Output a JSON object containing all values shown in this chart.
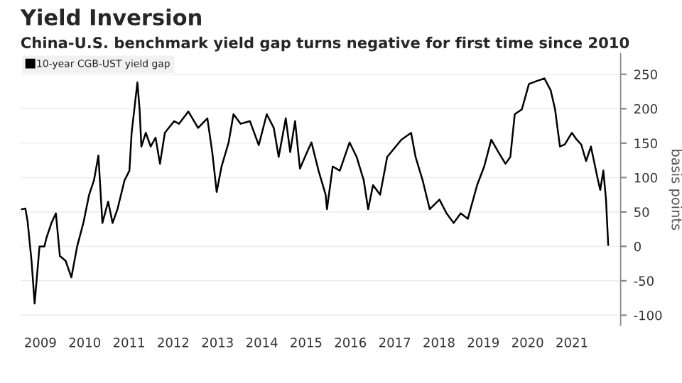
{
  "chart_data": {
    "type": "line",
    "title": "Yield Inversion",
    "subtitle": "China-U.S. benchmark yield gap turns negative for first time since 2010",
    "ylabel": "basis points",
    "series": [
      {
        "name": "10-year CGB-UST yield gap",
        "color": "#000000",
        "x": [
          2009.08,
          2009.16,
          2009.21,
          2009.3,
          2009.37,
          2009.48,
          2009.59,
          2009.64,
          2009.75,
          2009.85,
          2009.94,
          2010.07,
          2010.2,
          2010.33,
          2010.47,
          2010.6,
          2010.71,
          2010.81,
          2010.9,
          2011.03,
          2011.13,
          2011.24,
          2011.4,
          2011.51,
          2011.56,
          2011.69,
          2011.74,
          2011.78,
          2011.88,
          2011.99,
          2012.1,
          2012.2,
          2012.31,
          2012.52,
          2012.63,
          2012.84,
          2013.06,
          2013.27,
          2013.38,
          2013.48,
          2013.59,
          2013.75,
          2013.86,
          2014.02,
          2014.23,
          2014.43,
          2014.61,
          2014.77,
          2014.88,
          2015.04,
          2015.14,
          2015.25,
          2015.36,
          2015.52,
          2015.62,
          2015.78,
          2015.94,
          2015.97,
          2016.1,
          2016.26,
          2016.48,
          2016.64,
          2016.8,
          2016.9,
          2017.01,
          2017.17,
          2017.33,
          2017.65,
          2017.87,
          2017.97,
          2018.13,
          2018.29,
          2018.51,
          2018.67,
          2018.83,
          2018.99,
          2019.15,
          2019.36,
          2019.52,
          2019.68,
          2019.84,
          2020.0,
          2020.11,
          2020.21,
          2020.37,
          2020.53,
          2020.7,
          2020.88,
          2021.02,
          2021.12,
          2021.23,
          2021.34,
          2021.5,
          2021.61,
          2021.71,
          2021.82,
          2021.93,
          2022.09,
          2022.14,
          2022.21,
          2022.27,
          2022.32
        ],
        "values": [
          54,
          55,
          37,
          -21,
          -83,
          0,
          0,
          13,
          34,
          48,
          -14,
          -21,
          -45,
          0,
          34,
          75,
          96,
          132,
          34,
          65,
          34,
          54,
          96,
          110,
          165,
          238,
          199,
          145,
          165,
          145,
          158,
          120,
          165,
          182,
          178,
          196,
          172,
          186,
          137,
          79,
          116,
          151,
          192,
          178,
          182,
          147,
          192,
          172,
          130,
          186,
          137,
          182,
          113,
          137,
          151,
          110,
          75,
          54,
          116,
          110,
          151,
          130,
          96,
          54,
          89,
          75,
          130,
          155,
          165,
          130,
          96,
          54,
          68,
          48,
          34,
          48,
          40,
          89,
          116,
          155,
          137,
          120,
          130,
          192,
          199,
          236,
          240,
          244,
          227,
          199,
          145,
          148,
          165,
          155,
          148,
          124,
          145,
          96,
          82,
          110,
          68,
          2
        ]
      }
    ],
    "xlim": [
      2009.05,
      2022.6
    ],
    "xticks": [
      {
        "value": 2009.5,
        "label": "2009"
      },
      {
        "value": 2010.5,
        "label": "2010"
      },
      {
        "value": 2011.5,
        "label": "2011"
      },
      {
        "value": 2012.5,
        "label": "2012"
      },
      {
        "value": 2013.5,
        "label": "2013"
      },
      {
        "value": 2014.5,
        "label": "2014"
      },
      {
        "value": 2015.5,
        "label": "2015"
      },
      {
        "value": 2016.5,
        "label": "2016"
      },
      {
        "value": 2017.5,
        "label": "2017"
      },
      {
        "value": 2018.5,
        "label": "2018"
      },
      {
        "value": 2019.5,
        "label": "2019"
      },
      {
        "value": 2020.5,
        "label": "2020"
      },
      {
        "value": 2021.5,
        "label": "2021"
      }
    ],
    "ylim": [
      -115,
      280
    ],
    "yticks": [
      -100,
      -50,
      0,
      50,
      100,
      150,
      200,
      250
    ],
    "grid": "y",
    "legend": "top left",
    "marker": "none",
    "line_style": "solid"
  }
}
